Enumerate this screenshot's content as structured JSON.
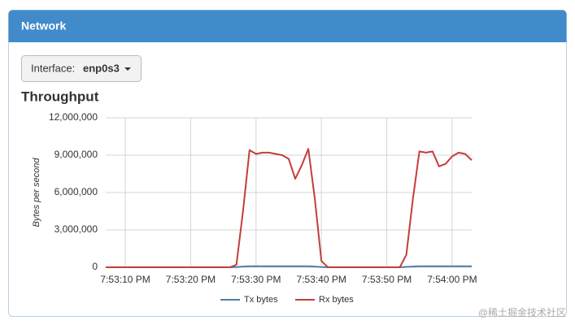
{
  "header": {
    "title": "Network"
  },
  "dropdown": {
    "label": "Interface:",
    "value": "enp0s3"
  },
  "watermark": "@稀土掘金技术社区",
  "chart_data": {
    "type": "line",
    "title": "Throughput",
    "y_label": "Bytes per second",
    "x": [
      "7:53:07 PM",
      "7:53:08 PM",
      "7:53:09 PM",
      "7:53:10 PM",
      "7:53:11 PM",
      "7:53:12 PM",
      "7:53:13 PM",
      "7:53:14 PM",
      "7:53:15 PM",
      "7:53:16 PM",
      "7:53:17 PM",
      "7:53:18 PM",
      "7:53:19 PM",
      "7:53:20 PM",
      "7:53:21 PM",
      "7:53:22 PM",
      "7:53:23 PM",
      "7:53:24 PM",
      "7:53:25 PM",
      "7:53:26 PM",
      "7:53:27 PM",
      "7:53:28 PM",
      "7:53:29 PM",
      "7:53:30 PM",
      "7:53:31 PM",
      "7:53:32 PM",
      "7:53:33 PM",
      "7:53:34 PM",
      "7:53:35 PM",
      "7:53:36 PM",
      "7:53:37 PM",
      "7:53:38 PM",
      "7:53:39 PM",
      "7:53:40 PM",
      "7:53:41 PM",
      "7:53:42 PM",
      "7:53:43 PM",
      "7:53:44 PM",
      "7:53:45 PM",
      "7:53:46 PM",
      "7:53:47 PM",
      "7:53:48 PM",
      "7:53:49 PM",
      "7:53:50 PM",
      "7:53:51 PM",
      "7:53:52 PM",
      "7:53:53 PM",
      "7:53:54 PM",
      "7:53:55 PM",
      "7:53:56 PM",
      "7:53:57 PM",
      "7:53:58 PM",
      "7:53:59 PM",
      "7:54:00 PM",
      "7:54:01 PM",
      "7:54:02 PM",
      "7:54:03 PM"
    ],
    "series": [
      {
        "name": "Tx bytes",
        "color": "#4f7fa6",
        "values": [
          0,
          0,
          0,
          0,
          0,
          0,
          0,
          0,
          0,
          0,
          0,
          0,
          0,
          0,
          0,
          0,
          0,
          0,
          0,
          0,
          20000,
          60000,
          80000,
          80000,
          80000,
          80000,
          80000,
          80000,
          80000,
          80000,
          80000,
          80000,
          60000,
          20000,
          0,
          0,
          0,
          0,
          0,
          0,
          0,
          0,
          0,
          0,
          0,
          0,
          30000,
          60000,
          80000,
          80000,
          80000,
          80000,
          80000,
          80000,
          80000,
          80000,
          80000
        ]
      },
      {
        "name": "Rx bytes",
        "color": "#c43d3a",
        "values": [
          0,
          0,
          0,
          0,
          0,
          0,
          0,
          0,
          0,
          0,
          0,
          0,
          0,
          0,
          0,
          0,
          0,
          0,
          0,
          0,
          200000,
          4500000,
          9400000,
          9100000,
          9200000,
          9200000,
          9100000,
          9000000,
          8700000,
          7100000,
          8200000,
          9500000,
          5500000,
          500000,
          0,
          0,
          0,
          0,
          0,
          0,
          0,
          0,
          0,
          0,
          0,
          0,
          1000000,
          5500000,
          9300000,
          9200000,
          9300000,
          8100000,
          8300000,
          8900000,
          9200000,
          9100000,
          8600000
        ]
      }
    ],
    "xlim": [
      "7:53:07 PM",
      "7:54:03 PM"
    ],
    "xticks": [
      "7:53:10 PM",
      "7:53:20 PM",
      "7:53:30 PM",
      "7:53:40 PM",
      "7:53:50 PM",
      "7:54:00 PM"
    ],
    "ylim": [
      0,
      12000000
    ],
    "yticks": [
      0,
      {
        "value": 3000000,
        "label": "3,000,000"
      },
      {
        "value": 6000000,
        "label": "6,000,000"
      },
      {
        "value": 9000000,
        "label": "9,000,000"
      },
      {
        "value": 12000000,
        "label": "12,000,000"
      }
    ],
    "grid": true,
    "legend": "bottom"
  }
}
